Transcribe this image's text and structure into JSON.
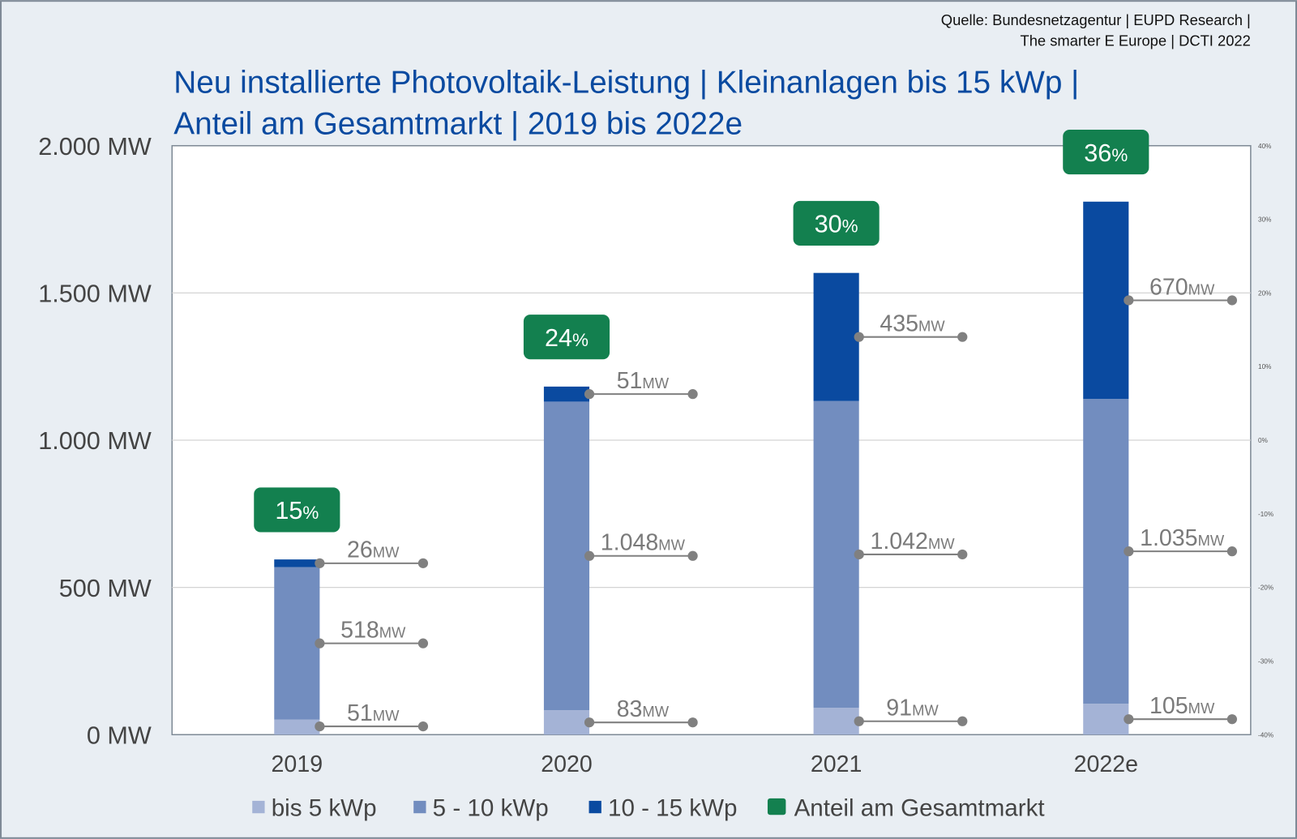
{
  "chart_data": {
    "type": "bar",
    "stacked": true,
    "source": [
      "Quelle: Bundesnetzagentur | EUPD Research |",
      "The smarter E Europe | DCTI 2022"
    ],
    "title": [
      "Neu installierte Photovoltaik-Leistung | Kleinanlagen bis 15 kWp |",
      "Anteil am Gesamtmarkt | 2019 bis 2022e"
    ],
    "categories": [
      "2019",
      "2020",
      "2021",
      "2022e"
    ],
    "series": [
      {
        "name": "bis 5 kWp",
        "color": "#a4b3d6",
        "values": [
          51,
          83,
          91,
          105
        ],
        "labels": [
          "51",
          "83",
          "91",
          "105"
        ]
      },
      {
        "name": "5 - 10 kWp",
        "color": "#728dbf",
        "values": [
          518,
          1048,
          1042,
          1035
        ],
        "labels": [
          "518",
          "1.048",
          "1.042",
          "1.035"
        ]
      },
      {
        "name": "10 - 15 kWp",
        "color": "#0a4aa0",
        "values": [
          26,
          51,
          435,
          670
        ],
        "labels": [
          "26",
          "51",
          "435",
          "670"
        ]
      }
    ],
    "share": {
      "name": "Anteil am Gesamtmarkt",
      "color": "#13804f",
      "values": [
        15,
        24,
        30,
        36
      ],
      "unit": "%"
    },
    "value_unit": "MW",
    "ylim": [
      0,
      2000
    ],
    "y_ticks": [
      "0 MW",
      "500 MW",
      "1.000 MW",
      "1.500 MW",
      "2.000 MW"
    ],
    "y2lim": [
      -40,
      40
    ],
    "y2_ticks": [
      "-40%",
      "-30%",
      "-20%",
      "-10%",
      "0%",
      "10%",
      "20%",
      "30%",
      "40%"
    ],
    "grid": true,
    "legend": "bottom"
  }
}
